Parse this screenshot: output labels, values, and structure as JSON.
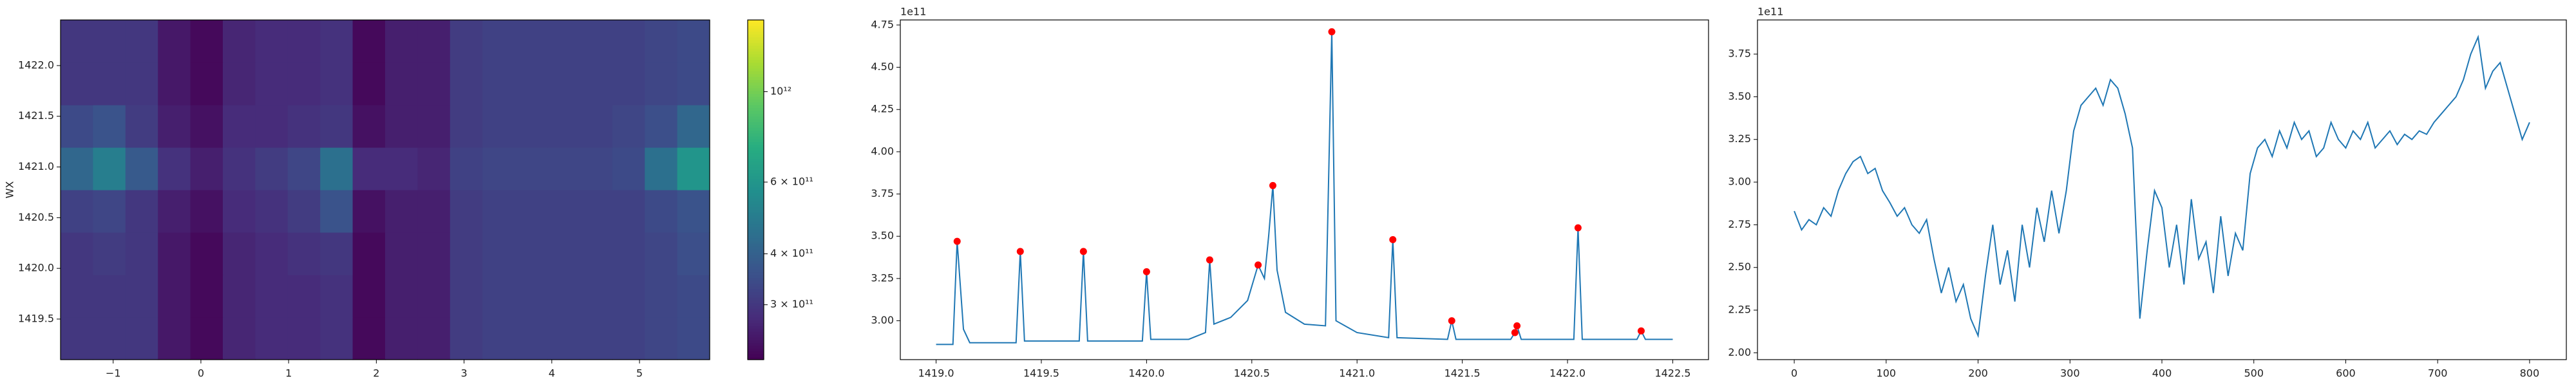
{
  "chart_data": [
    {
      "type": "heatmap",
      "ylabel": "WX",
      "xlim": [
        -1.6,
        5.8
      ],
      "ylim": [
        1419.1,
        1422.45
      ],
      "xticks": [
        {
          "value": -1,
          "label": "−1"
        },
        0,
        1,
        2,
        3,
        4,
        5
      ],
      "yticks": [
        1419.5,
        {
          "value": 1420.0,
          "label": "1420.0"
        },
        1420.5,
        {
          "value": 1421.0,
          "label": "1421.0"
        },
        1421.5,
        {
          "value": 1422.0,
          "label": "1422.0"
        }
      ],
      "colormap": "viridis",
      "log_scale": true,
      "clim": [
        220000000000.0,
        1500000000000.0
      ],
      "cticks": [
        {
          "value": 300000000000.0,
          "label": "3 × 10¹¹"
        },
        {
          "value": 400000000000.0,
          "label": "4 × 10¹¹"
        },
        {
          "value": 600000000000.0,
          "label": "6 × 10¹¹"
        },
        {
          "value": 1000000000000.0,
          "label": "10¹²"
        }
      ],
      "z": [
        [
          300000000000.0,
          300000000000.0,
          300000000000.0,
          250000000000.0,
          230000000000.0,
          270000000000.0,
          280000000000.0,
          280000000000.0,
          290000000000.0,
          230000000000.0,
          260000000000.0,
          260000000000.0,
          310000000000.0,
          320000000000.0,
          320000000000.0,
          320000000000.0,
          320000000000.0,
          320000000000.0,
          330000000000.0,
          340000000000.0
        ],
        [
          300000000000.0,
          300000000000.0,
          300000000000.0,
          250000000000.0,
          230000000000.0,
          270000000000.0,
          280000000000.0,
          280000000000.0,
          290000000000.0,
          230000000000.0,
          260000000000.0,
          260000000000.0,
          310000000000.0,
          320000000000.0,
          320000000000.0,
          320000000000.0,
          320000000000.0,
          320000000000.0,
          330000000000.0,
          340000000000.0
        ],
        [
          300000000000.0,
          310000000000.0,
          300000000000.0,
          250000000000.0,
          230000000000.0,
          270000000000.0,
          280000000000.0,
          290000000000.0,
          300000000000.0,
          230000000000.0,
          260000000000.0,
          260000000000.0,
          310000000000.0,
          320000000000.0,
          320000000000.0,
          320000000000.0,
          320000000000.0,
          320000000000.0,
          330000000000.0,
          350000000000.0
        ],
        [
          320000000000.0,
          330000000000.0,
          300000000000.0,
          260000000000.0,
          240000000000.0,
          280000000000.0,
          290000000000.0,
          310000000000.0,
          360000000000.0,
          240000000000.0,
          260000000000.0,
          260000000000.0,
          310000000000.0,
          320000000000.0,
          320000000000.0,
          320000000000.0,
          320000000000.0,
          320000000000.0,
          340000000000.0,
          360000000000.0
        ],
        [
          420000000000.0,
          500000000000.0,
          380000000000.0,
          290000000000.0,
          260000000000.0,
          290000000000.0,
          310000000000.0,
          330000000000.0,
          450000000000.0,
          280000000000.0,
          280000000000.0,
          270000000000.0,
          320000000000.0,
          330000000000.0,
          330000000000.0,
          330000000000.0,
          330000000000.0,
          340000000000.0,
          450000000000.0,
          600000000000.0
        ],
        [
          340000000000.0,
          360000000000.0,
          310000000000.0,
          260000000000.0,
          240000000000.0,
          280000000000.0,
          280000000000.0,
          290000000000.0,
          300000000000.0,
          240000000000.0,
          260000000000.0,
          260000000000.0,
          310000000000.0,
          320000000000.0,
          320000000000.0,
          320000000000.0,
          320000000000.0,
          330000000000.0,
          350000000000.0,
          420000000000.0
        ],
        [
          300000000000.0,
          300000000000.0,
          300000000000.0,
          250000000000.0,
          230000000000.0,
          270000000000.0,
          280000000000.0,
          280000000000.0,
          290000000000.0,
          230000000000.0,
          260000000000.0,
          260000000000.0,
          310000000000.0,
          320000000000.0,
          320000000000.0,
          320000000000.0,
          320000000000.0,
          320000000000.0,
          330000000000.0,
          340000000000.0
        ],
        [
          300000000000.0,
          300000000000.0,
          300000000000.0,
          250000000000.0,
          230000000000.0,
          270000000000.0,
          280000000000.0,
          280000000000.0,
          290000000000.0,
          230000000000.0,
          260000000000.0,
          260000000000.0,
          310000000000.0,
          320000000000.0,
          320000000000.0,
          320000000000.0,
          320000000000.0,
          320000000000.0,
          330000000000.0,
          340000000000.0
        ]
      ]
    },
    {
      "type": "line",
      "offset_text": "1e11",
      "xlim": [
        1418.83,
        1422.67
      ],
      "ylim": [
        2.77,
        4.78
      ],
      "xticks": [
        {
          "value": 1419.0,
          "label": "1419.0"
        },
        1419.5,
        {
          "value": 1420.0,
          "label": "1420.0"
        },
        1420.5,
        {
          "value": 1421.0,
          "label": "1421.0"
        },
        1421.5,
        {
          "value": 1422.0,
          "label": "1422.0"
        },
        1422.5
      ],
      "yticks": [
        {
          "value": 3,
          "label": "3.00"
        },
        {
          "value": 3.25,
          "label": "3.25"
        },
        {
          "value": 3.5,
          "label": "3.50"
        },
        {
          "value": 3.75,
          "label": "3.75"
        },
        {
          "value": 4,
          "label": "4.00"
        },
        {
          "value": 4.25,
          "label": "4.25"
        },
        {
          "value": 4.5,
          "label": "4.50"
        },
        {
          "value": 4.75,
          "label": "4.75"
        }
      ],
      "series": [
        {
          "color": "#1f77b4",
          "linestyle": "solid",
          "x": [
            1419.0,
            1419.08,
            1419.1,
            1419.13,
            1419.16,
            1419.38,
            1419.4,
            1419.42,
            1419.68,
            1419.7,
            1419.72,
            1419.98,
            1420.0,
            1420.02,
            1420.2,
            1420.28,
            1420.3,
            1420.32,
            1420.4,
            1420.48,
            1420.53,
            1420.56,
            1420.58,
            1420.6,
            1420.62,
            1420.66,
            1420.75,
            1420.85,
            1420.88,
            1420.9,
            1421.0,
            1421.15,
            1421.17,
            1421.19,
            1421.43,
            1421.45,
            1421.47,
            1421.73,
            1421.75,
            1421.76,
            1421.78,
            1422.03,
            1422.05,
            1422.07,
            1422.33,
            1422.35,
            1422.37,
            1422.5
          ],
          "values": [
            2.86,
            2.86,
            3.47,
            2.95,
            2.87,
            2.87,
            3.41,
            2.88,
            2.88,
            3.41,
            2.88,
            2.88,
            3.29,
            2.89,
            2.89,
            2.93,
            3.36,
            2.98,
            3.02,
            3.12,
            3.33,
            3.25,
            3.5,
            3.8,
            3.3,
            3.05,
            2.98,
            2.97,
            4.71,
            3.0,
            2.93,
            2.9,
            3.48,
            2.9,
            2.89,
            3.0,
            2.89,
            2.89,
            2.93,
            2.97,
            2.89,
            2.89,
            3.55,
            2.89,
            2.89,
            2.94,
            2.89,
            2.89
          ]
        },
        {
          "color": "#ff0000",
          "linestyle": "none",
          "marker": "o",
          "x": [
            1419.1,
            1419.4,
            1419.7,
            1420.0,
            1420.3,
            1420.53,
            1420.6,
            1420.88,
            1421.17,
            1421.45,
            1421.75,
            1421.76,
            1422.05,
            1422.35
          ],
          "values": [
            3.47,
            3.41,
            3.41,
            3.29,
            3.36,
            3.33,
            3.8,
            4.71,
            3.48,
            3.0,
            2.93,
            2.97,
            3.55,
            2.94
          ]
        }
      ]
    },
    {
      "type": "line",
      "offset_text": "1e11",
      "xlim": [
        -40,
        840
      ],
      "ylim": [
        1.96,
        3.95
      ],
      "xticks": [
        0,
        100,
        200,
        300,
        400,
        500,
        600,
        700,
        800
      ],
      "yticks": [
        {
          "value": 2,
          "label": "2.00"
        },
        {
          "value": 2.25,
          "label": "2.25"
        },
        {
          "value": 2.5,
          "label": "2.50"
        },
        {
          "value": 2.75,
          "label": "2.75"
        },
        {
          "value": 3,
          "label": "3.00"
        },
        {
          "value": 3.25,
          "label": "3.25"
        },
        {
          "value": 3.5,
          "label": "3.50"
        },
        {
          "value": 3.75,
          "label": "3.75"
        }
      ],
      "series": [
        {
          "color": "#1f77b4",
          "linestyle": "solid",
          "x": [
            0,
            8,
            16,
            24,
            32,
            40,
            48,
            56,
            64,
            72,
            80,
            88,
            96,
            104,
            112,
            120,
            128,
            136,
            144,
            152,
            160,
            168,
            176,
            184,
            192,
            200,
            208,
            216,
            224,
            232,
            240,
            248,
            256,
            264,
            272,
            280,
            288,
            296,
            304,
            312,
            320,
            328,
            336,
            344,
            352,
            360,
            368,
            376,
            384,
            392,
            400,
            408,
            416,
            424,
            432,
            440,
            448,
            456,
            464,
            472,
            480,
            488,
            496,
            504,
            512,
            520,
            528,
            536,
            544,
            552,
            560,
            568,
            576,
            584,
            592,
            600,
            608,
            616,
            624,
            632,
            640,
            648,
            656,
            664,
            672,
            680,
            688,
            696,
            704,
            712,
            720,
            728,
            736,
            744,
            752,
            760,
            768,
            776,
            784,
            792,
            800
          ],
          "values": [
            2.83,
            2.72,
            2.78,
            2.75,
            2.85,
            2.8,
            2.95,
            3.05,
            3.12,
            3.15,
            3.05,
            3.08,
            2.95,
            2.88,
            2.8,
            2.85,
            2.75,
            2.7,
            2.78,
            2.55,
            2.35,
            2.5,
            2.3,
            2.4,
            2.2,
            2.1,
            2.45,
            2.75,
            2.4,
            2.6,
            2.3,
            2.75,
            2.5,
            2.85,
            2.65,
            2.95,
            2.7,
            2.95,
            3.3,
            3.45,
            3.5,
            3.55,
            3.45,
            3.6,
            3.55,
            3.4,
            3.2,
            2.2,
            2.6,
            2.95,
            2.85,
            2.5,
            2.75,
            2.4,
            2.9,
            2.55,
            2.65,
            2.35,
            2.8,
            2.45,
            2.7,
            2.6,
            3.05,
            3.2,
            3.25,
            3.15,
            3.3,
            3.2,
            3.35,
            3.25,
            3.3,
            3.15,
            3.2,
            3.35,
            3.25,
            3.2,
            3.3,
            3.25,
            3.35,
            3.2,
            3.25,
            3.3,
            3.22,
            3.28,
            3.25,
            3.3,
            3.28,
            3.35,
            3.4,
            3.45,
            3.5,
            3.6,
            3.75,
            3.85,
            3.55,
            3.65,
            3.7,
            3.55,
            3.4,
            3.25,
            3.35
          ]
        }
      ]
    }
  ]
}
